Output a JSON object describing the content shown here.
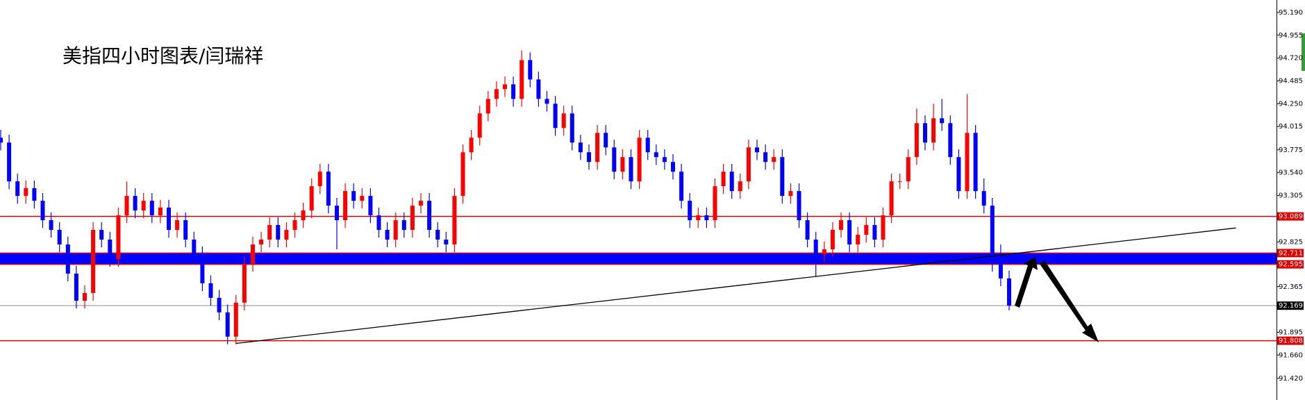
{
  "chart_data": {
    "type": "candlestick",
    "title": "美指四小时图表/闫瑞祥",
    "up_color": "#ff0000",
    "down_color": "#0000ff",
    "ylim": [
      91.197,
      95.319
    ],
    "yticks": [
      {
        "value": 95.19,
        "label": "95.190"
      },
      {
        "value": 94.955,
        "label": "94.955"
      },
      {
        "value": 94.72,
        "label": "94.720"
      },
      {
        "value": 94.485,
        "label": "94.485"
      },
      {
        "value": 94.25,
        "label": "94.250"
      },
      {
        "value": 94.015,
        "label": "94.015"
      },
      {
        "value": 93.775,
        "label": "93.775"
      },
      {
        "value": 93.54,
        "label": "93.540"
      },
      {
        "value": 93.305,
        "label": "93.305"
      },
      {
        "value": 92.825,
        "label": "92.825"
      },
      {
        "value": 92.365,
        "label": "92.365"
      },
      {
        "value": 91.895,
        "label": "91.895"
      },
      {
        "value": 91.66,
        "label": "91.660"
      },
      {
        "value": 91.42,
        "label": "91.420"
      }
    ],
    "levels": [
      {
        "value": 93.089,
        "label": "93.089",
        "color": "#e00000"
      },
      {
        "value": 92.711,
        "label": "92.711",
        "color": "#e00000"
      },
      {
        "value": 92.595,
        "label": "92.595",
        "color": "#e00000"
      },
      {
        "value": 92.169,
        "label": "92.169",
        "color": "#b0b0b0"
      },
      {
        "value": 91.808,
        "label": "91.808",
        "color": "#e00000"
      }
    ],
    "band": {
      "from": 92.595,
      "to": 92.711,
      "color": "#0000ff"
    },
    "trendline": {
      "x": [
        28,
        147
      ],
      "y": [
        91.78,
        92.97
      ],
      "color": "#000000"
    },
    "open": [
      93.9,
      93.85,
      93.45,
      93.3,
      93.38,
      93.25,
      93.05,
      92.95,
      92.8,
      92.5,
      92.22,
      92.3,
      92.95,
      92.85,
      92.65,
      93.1,
      93.3,
      93.15,
      93.25,
      93.1,
      93.18,
      92.95,
      93.05,
      92.85,
      92.7,
      92.4,
      92.25,
      92.1,
      91.85,
      92.2,
      92.6,
      92.8,
      92.85,
      93.0,
      92.85,
      92.95,
      93.05,
      93.15,
      93.4,
      93.55,
      93.2,
      93.05,
      93.35,
      93.25,
      93.3,
      93.1,
      92.95,
      92.85,
      93.05,
      92.95,
      93.2,
      93.25,
      92.95,
      92.85,
      92.8,
      93.3,
      93.75,
      93.9,
      94.15,
      94.3,
      94.4,
      94.45,
      94.3,
      94.7,
      94.5,
      94.3,
      94.25,
      94.0,
      94.15,
      93.85,
      93.75,
      93.65,
      93.95,
      93.8,
      93.55,
      93.7,
      93.45,
      93.9,
      93.75,
      93.7,
      93.65,
      93.55,
      93.25,
      93.05,
      93.1,
      93.05,
      93.4,
      93.55,
      93.35,
      93.45,
      93.8,
      93.75,
      93.65,
      93.7,
      93.3,
      93.35,
      93.05,
      92.85,
      92.7,
      92.75,
      92.95,
      93.05,
      92.8,
      92.9,
      93.0,
      92.85,
      93.1,
      93.45,
      93.45,
      93.7,
      94.05,
      93.85,
      94.1,
      94.05,
      93.7,
      93.35,
      93.95,
      93.35,
      93.2,
      92.6,
      92.45
    ],
    "high": [
      93.98,
      93.93,
      93.53,
      93.46,
      93.46,
      93.33,
      93.13,
      93.03,
      92.88,
      92.58,
      92.38,
      93.03,
      93.03,
      92.93,
      93.18,
      93.45,
      93.38,
      93.33,
      93.33,
      93.26,
      93.26,
      93.13,
      93.13,
      92.93,
      92.78,
      92.48,
      92.33,
      92.18,
      92.28,
      92.68,
      92.88,
      92.93,
      93.08,
      93.08,
      93.03,
      93.13,
      93.23,
      93.48,
      93.63,
      93.63,
      93.28,
      93.43,
      93.43,
      93.38,
      93.38,
      93.18,
      93.03,
      93.13,
      93.13,
      93.28,
      93.33,
      93.33,
      93.03,
      92.93,
      93.38,
      93.83,
      93.98,
      94.23,
      94.38,
      94.48,
      94.53,
      94.53,
      94.8,
      94.78,
      94.58,
      94.38,
      94.33,
      94.23,
      94.23,
      93.93,
      93.83,
      94.03,
      94.03,
      93.88,
      93.78,
      93.78,
      93.98,
      93.98,
      93.83,
      93.78,
      93.73,
      93.63,
      93.33,
      93.18,
      93.18,
      93.48,
      93.63,
      93.63,
      93.53,
      93.88,
      93.88,
      93.83,
      93.78,
      93.78,
      93.43,
      93.43,
      93.13,
      92.93,
      92.83,
      93.03,
      93.13,
      93.13,
      92.98,
      93.08,
      93.08,
      93.18,
      93.53,
      93.53,
      93.78,
      94.2,
      94.13,
      94.25,
      94.3,
      94.13,
      93.78,
      94.35,
      94.03,
      93.48,
      93.28,
      92.8,
      92.53
    ],
    "low": [
      93.77,
      93.37,
      93.22,
      93.22,
      93.17,
      92.97,
      92.87,
      92.72,
      92.42,
      92.14,
      92.14,
      92.22,
      92.77,
      92.57,
      92.57,
      93.02,
      93.07,
      93.07,
      93.02,
      93.02,
      92.87,
      92.87,
      92.77,
      92.62,
      92.32,
      92.17,
      92.02,
      91.77,
      91.77,
      92.12,
      92.52,
      92.72,
      92.77,
      92.77,
      92.77,
      92.87,
      92.97,
      93.07,
      93.32,
      93.12,
      92.75,
      92.97,
      93.17,
      93.17,
      93.02,
      92.87,
      92.77,
      92.77,
      92.87,
      92.87,
      93.12,
      92.87,
      92.77,
      92.72,
      92.72,
      93.22,
      93.67,
      93.82,
      94.07,
      94.22,
      94.32,
      94.22,
      94.22,
      94.42,
      94.22,
      94.17,
      93.92,
      93.92,
      93.77,
      93.67,
      93.57,
      93.57,
      93.72,
      93.47,
      93.47,
      93.37,
      93.37,
      93.67,
      93.62,
      93.57,
      93.47,
      93.17,
      92.97,
      92.97,
      92.97,
      92.97,
      93.32,
      93.27,
      93.27,
      93.37,
      93.67,
      93.57,
      93.57,
      93.22,
      93.22,
      92.97,
      92.77,
      92.47,
      92.62,
      92.67,
      92.87,
      92.72,
      92.72,
      92.82,
      92.77,
      92.77,
      93.02,
      93.37,
      93.37,
      93.62,
      93.77,
      93.77,
      93.97,
      93.62,
      93.27,
      93.27,
      93.27,
      93.12,
      92.52,
      92.37,
      92.12
    ],
    "close": [
      93.85,
      93.45,
      93.3,
      93.38,
      93.25,
      93.05,
      92.95,
      92.8,
      92.5,
      92.22,
      92.3,
      92.95,
      92.85,
      92.65,
      93.1,
      93.3,
      93.15,
      93.25,
      93.1,
      93.18,
      92.95,
      93.05,
      92.85,
      92.7,
      92.4,
      92.25,
      92.1,
      91.85,
      92.2,
      92.6,
      92.8,
      92.85,
      93.0,
      92.85,
      92.95,
      93.05,
      93.15,
      93.4,
      93.55,
      93.2,
      93.05,
      93.35,
      93.25,
      93.3,
      93.1,
      92.95,
      92.85,
      93.05,
      92.95,
      93.2,
      93.25,
      92.95,
      92.85,
      92.8,
      93.3,
      93.75,
      93.9,
      94.15,
      94.3,
      94.4,
      94.45,
      94.3,
      94.7,
      94.5,
      94.3,
      94.25,
      94.0,
      94.15,
      93.85,
      93.75,
      93.65,
      93.95,
      93.8,
      93.55,
      93.7,
      93.45,
      93.9,
      93.75,
      93.7,
      93.65,
      93.55,
      93.25,
      93.05,
      93.1,
      93.05,
      93.4,
      93.55,
      93.35,
      93.45,
      93.8,
      93.75,
      93.65,
      93.7,
      93.3,
      93.35,
      93.05,
      92.85,
      92.7,
      92.75,
      92.95,
      93.05,
      92.8,
      92.9,
      93.0,
      92.85,
      93.1,
      93.45,
      93.45,
      93.7,
      94.05,
      93.85,
      94.1,
      94.05,
      93.7,
      93.35,
      93.95,
      93.35,
      93.2,
      92.6,
      92.45,
      92.17
    ]
  }
}
